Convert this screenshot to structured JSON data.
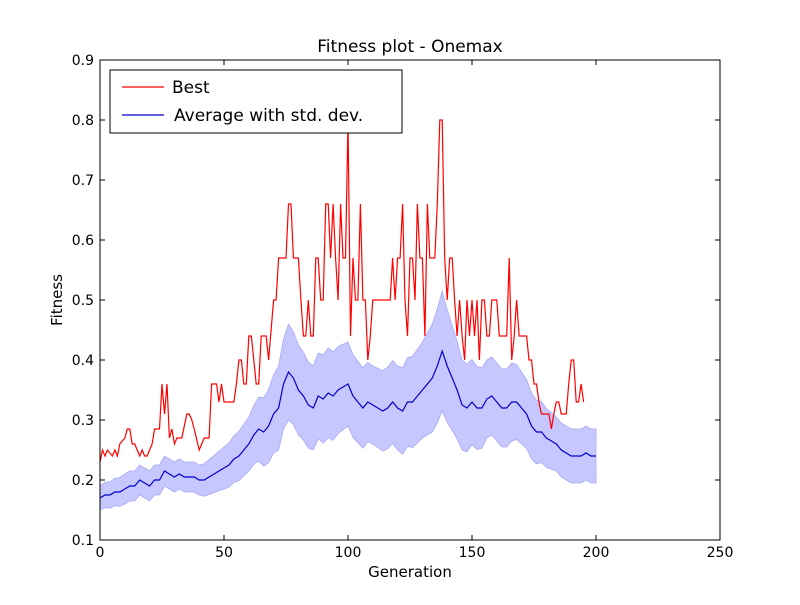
{
  "chart_data": {
    "type": "line",
    "title": "Fitness plot - Onemax",
    "xlabel": "Generation",
    "ylabel": "Fitness",
    "xlim": [
      0,
      250
    ],
    "ylim": [
      0.1,
      0.9
    ],
    "xticks": [
      0,
      50,
      100,
      150,
      200,
      250
    ],
    "yticks": [
      0.1,
      0.2,
      0.3,
      0.4,
      0.5,
      0.6,
      0.7,
      0.8,
      0.9
    ],
    "grid": false,
    "legend_position": "top-left",
    "series": [
      {
        "name": "Best",
        "color": "#ff0000",
        "points": [
          [
            0,
            0.23
          ],
          [
            1,
            0.25
          ],
          [
            2,
            0.24
          ],
          [
            3,
            0.25
          ],
          [
            5,
            0.24
          ],
          [
            6,
            0.25
          ],
          [
            7,
            0.24
          ],
          [
            8,
            0.26
          ],
          [
            10,
            0.27
          ],
          [
            11,
            0.285
          ],
          [
            12,
            0.285
          ],
          [
            13,
            0.26
          ],
          [
            14,
            0.26
          ],
          [
            15,
            0.25
          ],
          [
            16,
            0.24
          ],
          [
            17,
            0.25
          ],
          [
            18,
            0.24
          ],
          [
            19,
            0.24
          ],
          [
            20,
            0.25
          ],
          [
            21,
            0.26
          ],
          [
            22,
            0.285
          ],
          [
            24,
            0.285
          ],
          [
            25,
            0.36
          ],
          [
            26,
            0.31
          ],
          [
            27,
            0.36
          ],
          [
            28,
            0.27
          ],
          [
            29,
            0.285
          ],
          [
            30,
            0.26
          ],
          [
            31,
            0.27
          ],
          [
            32,
            0.27
          ],
          [
            33,
            0.27
          ],
          [
            35,
            0.31
          ],
          [
            36,
            0.31
          ],
          [
            37,
            0.3
          ],
          [
            38,
            0.285
          ],
          [
            40,
            0.25
          ],
          [
            42,
            0.27
          ],
          [
            44,
            0.27
          ],
          [
            45,
            0.36
          ],
          [
            47,
            0.36
          ],
          [
            48,
            0.33
          ],
          [
            49,
            0.36
          ],
          [
            50,
            0.33
          ],
          [
            52,
            0.33
          ],
          [
            54,
            0.33
          ],
          [
            55,
            0.36
          ],
          [
            56,
            0.4
          ],
          [
            57,
            0.4
          ],
          [
            58,
            0.36
          ],
          [
            59,
            0.36
          ],
          [
            60,
            0.44
          ],
          [
            61,
            0.44
          ],
          [
            62,
            0.4
          ],
          [
            63,
            0.36
          ],
          [
            64,
            0.36
          ],
          [
            65,
            0.44
          ],
          [
            66,
            0.44
          ],
          [
            67,
            0.44
          ],
          [
            68,
            0.4
          ],
          [
            70,
            0.5
          ],
          [
            71,
            0.5
          ],
          [
            72,
            0.57
          ],
          [
            74,
            0.57
          ],
          [
            75,
            0.57
          ],
          [
            76,
            0.66
          ],
          [
            77,
            0.66
          ],
          [
            78,
            0.57
          ],
          [
            80,
            0.57
          ],
          [
            81,
            0.5
          ],
          [
            82,
            0.44
          ],
          [
            83,
            0.44
          ],
          [
            84,
            0.5
          ],
          [
            85,
            0.44
          ],
          [
            86,
            0.44
          ],
          [
            87,
            0.57
          ],
          [
            88,
            0.57
          ],
          [
            89,
            0.5
          ],
          [
            90,
            0.5
          ],
          [
            91,
            0.66
          ],
          [
            92,
            0.66
          ],
          [
            93,
            0.57
          ],
          [
            94,
            0.66
          ],
          [
            95,
            0.57
          ],
          [
            96,
            0.5
          ],
          [
            97,
            0.66
          ],
          [
            98,
            0.57
          ],
          [
            99,
            0.57
          ],
          [
            100,
            0.8
          ],
          [
            101,
            0.44
          ],
          [
            102,
            0.57
          ],
          [
            103,
            0.5
          ],
          [
            104,
            0.5
          ],
          [
            105,
            0.66
          ],
          [
            106,
            0.5
          ],
          [
            107,
            0.5
          ],
          [
            108,
            0.4
          ],
          [
            109,
            0.44
          ],
          [
            110,
            0.5
          ],
          [
            111,
            0.5
          ],
          [
            112,
            0.5
          ],
          [
            113,
            0.5
          ],
          [
            114,
            0.5
          ],
          [
            115,
            0.5
          ],
          [
            116,
            0.5
          ],
          [
            117,
            0.5
          ],
          [
            118,
            0.57
          ],
          [
            119,
            0.5
          ],
          [
            120,
            0.57
          ],
          [
            121,
            0.57
          ],
          [
            122,
            0.66
          ],
          [
            123,
            0.5
          ],
          [
            124,
            0.44
          ],
          [
            125,
            0.57
          ],
          [
            126,
            0.57
          ],
          [
            127,
            0.5
          ],
          [
            128,
            0.66
          ],
          [
            129,
            0.57
          ],
          [
            130,
            0.57
          ],
          [
            131,
            0.44
          ],
          [
            132,
            0.66
          ],
          [
            133,
            0.57
          ],
          [
            134,
            0.57
          ],
          [
            135,
            0.57
          ],
          [
            136,
            0.66
          ],
          [
            137,
            0.8
          ],
          [
            138,
            0.8
          ],
          [
            139,
            0.57
          ],
          [
            140,
            0.5
          ],
          [
            141,
            0.57
          ],
          [
            142,
            0.57
          ],
          [
            143,
            0.5
          ],
          [
            144,
            0.44
          ],
          [
            145,
            0.5
          ],
          [
            146,
            0.44
          ],
          [
            147,
            0.4
          ],
          [
            148,
            0.5
          ],
          [
            149,
            0.44
          ],
          [
            150,
            0.5
          ],
          [
            151,
            0.44
          ],
          [
            152,
            0.5
          ],
          [
            153,
            0.4
          ],
          [
            154,
            0.5
          ],
          [
            155,
            0.5
          ],
          [
            156,
            0.44
          ],
          [
            157,
            0.44
          ],
          [
            158,
            0.5
          ],
          [
            159,
            0.5
          ],
          [
            160,
            0.5
          ],
          [
            161,
            0.44
          ],
          [
            162,
            0.44
          ],
          [
            163,
            0.44
          ],
          [
            164,
            0.44
          ],
          [
            165,
            0.57
          ],
          [
            166,
            0.4
          ],
          [
            167,
            0.44
          ],
          [
            168,
            0.5
          ],
          [
            169,
            0.44
          ],
          [
            170,
            0.44
          ],
          [
            171,
            0.44
          ],
          [
            172,
            0.44
          ],
          [
            173,
            0.4
          ],
          [
            174,
            0.4
          ],
          [
            175,
            0.36
          ],
          [
            176,
            0.36
          ],
          [
            177,
            0.33
          ],
          [
            178,
            0.31
          ],
          [
            179,
            0.31
          ],
          [
            180,
            0.31
          ],
          [
            181,
            0.31
          ],
          [
            182,
            0.285
          ],
          [
            183,
            0.31
          ],
          [
            184,
            0.33
          ],
          [
            185,
            0.33
          ],
          [
            186,
            0.31
          ],
          [
            187,
            0.31
          ],
          [
            188,
            0.31
          ],
          [
            189,
            0.36
          ],
          [
            190,
            0.4
          ],
          [
            191,
            0.4
          ],
          [
            192,
            0.33
          ],
          [
            193,
            0.33
          ],
          [
            194,
            0.36
          ],
          [
            195,
            0.33
          ]
        ]
      },
      {
        "name": "Average with std. dev.",
        "color": "#0000cc",
        "band_color": "#c7c7ff",
        "points": [
          [
            0,
            0.17
          ],
          [
            2,
            0.175
          ],
          [
            4,
            0.175
          ],
          [
            6,
            0.18
          ],
          [
            8,
            0.18
          ],
          [
            10,
            0.185
          ],
          [
            12,
            0.19
          ],
          [
            14,
            0.19
          ],
          [
            16,
            0.2
          ],
          [
            18,
            0.195
          ],
          [
            20,
            0.19
          ],
          [
            22,
            0.2
          ],
          [
            24,
            0.2
          ],
          [
            26,
            0.215
          ],
          [
            28,
            0.21
          ],
          [
            30,
            0.205
          ],
          [
            32,
            0.21
          ],
          [
            34,
            0.205
          ],
          [
            36,
            0.205
          ],
          [
            38,
            0.205
          ],
          [
            40,
            0.2
          ],
          [
            42,
            0.2
          ],
          [
            44,
            0.205
          ],
          [
            46,
            0.21
          ],
          [
            48,
            0.215
          ],
          [
            50,
            0.22
          ],
          [
            52,
            0.225
          ],
          [
            54,
            0.235
          ],
          [
            56,
            0.24
          ],
          [
            58,
            0.25
          ],
          [
            60,
            0.26
          ],
          [
            62,
            0.275
          ],
          [
            64,
            0.285
          ],
          [
            66,
            0.28
          ],
          [
            68,
            0.29
          ],
          [
            70,
            0.31
          ],
          [
            72,
            0.32
          ],
          [
            74,
            0.36
          ],
          [
            76,
            0.38
          ],
          [
            78,
            0.37
          ],
          [
            80,
            0.35
          ],
          [
            82,
            0.34
          ],
          [
            84,
            0.325
          ],
          [
            86,
            0.32
          ],
          [
            88,
            0.34
          ],
          [
            90,
            0.335
          ],
          [
            92,
            0.345
          ],
          [
            94,
            0.34
          ],
          [
            96,
            0.35
          ],
          [
            98,
            0.355
          ],
          [
            100,
            0.36
          ],
          [
            102,
            0.34
          ],
          [
            104,
            0.33
          ],
          [
            106,
            0.32
          ],
          [
            108,
            0.33
          ],
          [
            110,
            0.325
          ],
          [
            112,
            0.32
          ],
          [
            114,
            0.315
          ],
          [
            116,
            0.32
          ],
          [
            118,
            0.33
          ],
          [
            120,
            0.32
          ],
          [
            122,
            0.315
          ],
          [
            124,
            0.33
          ],
          [
            126,
            0.33
          ],
          [
            128,
            0.34
          ],
          [
            130,
            0.35
          ],
          [
            132,
            0.36
          ],
          [
            134,
            0.37
          ],
          [
            136,
            0.39
          ],
          [
            138,
            0.415
          ],
          [
            140,
            0.39
          ],
          [
            142,
            0.37
          ],
          [
            144,
            0.35
          ],
          [
            146,
            0.325
          ],
          [
            148,
            0.32
          ],
          [
            150,
            0.33
          ],
          [
            152,
            0.32
          ],
          [
            154,
            0.32
          ],
          [
            156,
            0.335
          ],
          [
            158,
            0.34
          ],
          [
            160,
            0.33
          ],
          [
            162,
            0.32
          ],
          [
            164,
            0.32
          ],
          [
            166,
            0.33
          ],
          [
            168,
            0.33
          ],
          [
            170,
            0.32
          ],
          [
            172,
            0.31
          ],
          [
            174,
            0.29
          ],
          [
            176,
            0.28
          ],
          [
            178,
            0.28
          ],
          [
            180,
            0.27
          ],
          [
            182,
            0.265
          ],
          [
            184,
            0.26
          ],
          [
            186,
            0.25
          ],
          [
            188,
            0.245
          ],
          [
            190,
            0.24
          ],
          [
            192,
            0.24
          ],
          [
            194,
            0.24
          ],
          [
            196,
            0.245
          ],
          [
            198,
            0.24
          ],
          [
            200,
            0.24
          ]
        ],
        "std": [
          [
            0,
            0.02
          ],
          [
            10,
            0.025
          ],
          [
            20,
            0.025
          ],
          [
            30,
            0.025
          ],
          [
            40,
            0.025
          ],
          [
            50,
            0.035
          ],
          [
            60,
            0.045
          ],
          [
            70,
            0.065
          ],
          [
            76,
            0.08
          ],
          [
            80,
            0.075
          ],
          [
            86,
            0.07
          ],
          [
            92,
            0.075
          ],
          [
            100,
            0.07
          ],
          [
            110,
            0.065
          ],
          [
            120,
            0.07
          ],
          [
            130,
            0.08
          ],
          [
            138,
            0.1
          ],
          [
            146,
            0.075
          ],
          [
            156,
            0.065
          ],
          [
            166,
            0.065
          ],
          [
            174,
            0.055
          ],
          [
            184,
            0.045
          ],
          [
            200,
            0.045
          ]
        ]
      }
    ]
  }
}
